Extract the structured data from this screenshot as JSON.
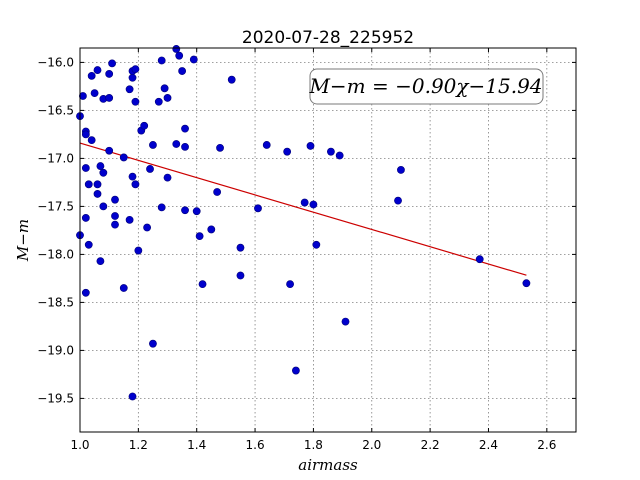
{
  "chart_data": {
    "type": "scatter",
    "title": "2020-07-28_225952",
    "xlabel": "airmass",
    "ylabel": "M−m",
    "xlim": [
      1.0,
      2.7
    ],
    "ylim": [
      -15.85,
      -19.85
    ],
    "y_inverted": true,
    "grid": true,
    "xticks": [
      "1.0",
      "1.2",
      "1.4",
      "1.6",
      "1.8",
      "2.0",
      "2.2",
      "2.4",
      "2.6"
    ],
    "yticks": [
      "−16.0",
      "−16.5",
      "−17.0",
      "−17.5",
      "−18.0",
      "−18.5",
      "−19.0",
      "−19.5"
    ],
    "annotation": "M−m = −0.90χ−15.94",
    "colors": {
      "points": "#0000cc",
      "fit_line": "#cc0000",
      "annotation_border": "#7a7a7a"
    },
    "fit": {
      "slope": -0.9,
      "intercept": -15.94,
      "x_range": [
        1.0,
        2.53
      ]
    },
    "points": [
      {
        "x": 1.0,
        "y": -16.56
      },
      {
        "x": 1.01,
        "y": -16.35
      },
      {
        "x": 1.02,
        "y": -16.72
      },
      {
        "x": 1.02,
        "y": -16.75
      },
      {
        "x": 1.0,
        "y": -17.8
      },
      {
        "x": 1.02,
        "y": -17.1
      },
      {
        "x": 1.02,
        "y": -17.62
      },
      {
        "x": 1.03,
        "y": -17.9
      },
      {
        "x": 1.03,
        "y": -17.27
      },
      {
        "x": 1.02,
        "y": -18.4
      },
      {
        "x": 1.04,
        "y": -16.14
      },
      {
        "x": 1.05,
        "y": -16.32
      },
      {
        "x": 1.04,
        "y": -16.81
      },
      {
        "x": 1.06,
        "y": -16.08
      },
      {
        "x": 1.06,
        "y": -17.27
      },
      {
        "x": 1.06,
        "y": -17.37
      },
      {
        "x": 1.07,
        "y": -17.08
      },
      {
        "x": 1.07,
        "y": -18.07
      },
      {
        "x": 1.08,
        "y": -16.38
      },
      {
        "x": 1.08,
        "y": -17.15
      },
      {
        "x": 1.08,
        "y": -17.5
      },
      {
        "x": 1.1,
        "y": -16.37
      },
      {
        "x": 1.1,
        "y": -16.12
      },
      {
        "x": 1.1,
        "y": -16.92
      },
      {
        "x": 1.11,
        "y": -16.01
      },
      {
        "x": 1.12,
        "y": -17.69
      },
      {
        "x": 1.12,
        "y": -17.6
      },
      {
        "x": 1.12,
        "y": -17.43
      },
      {
        "x": 1.15,
        "y": -16.99
      },
      {
        "x": 1.15,
        "y": -18.35
      },
      {
        "x": 1.17,
        "y": -16.28
      },
      {
        "x": 1.17,
        "y": -17.64
      },
      {
        "x": 1.18,
        "y": -16.16
      },
      {
        "x": 1.18,
        "y": -16.09
      },
      {
        "x": 1.18,
        "y": -17.19
      },
      {
        "x": 1.18,
        "y": -19.48
      },
      {
        "x": 1.19,
        "y": -16.07
      },
      {
        "x": 1.19,
        "y": -16.41
      },
      {
        "x": 1.19,
        "y": -17.27
      },
      {
        "x": 1.2,
        "y": -17.96
      },
      {
        "x": 1.21,
        "y": -16.71
      },
      {
        "x": 1.22,
        "y": -16.66
      },
      {
        "x": 1.23,
        "y": -17.72
      },
      {
        "x": 1.24,
        "y": -17.11
      },
      {
        "x": 1.25,
        "y": -16.86
      },
      {
        "x": 1.25,
        "y": -18.93
      },
      {
        "x": 1.27,
        "y": -16.41
      },
      {
        "x": 1.28,
        "y": -15.98
      },
      {
        "x": 1.28,
        "y": -17.51
      },
      {
        "x": 1.29,
        "y": -16.27
      },
      {
        "x": 1.3,
        "y": -16.37
      },
      {
        "x": 1.3,
        "y": -17.2
      },
      {
        "x": 1.33,
        "y": -16.85
      },
      {
        "x": 1.33,
        "y": -15.86
      },
      {
        "x": 1.34,
        "y": -15.93
      },
      {
        "x": 1.35,
        "y": -16.09
      },
      {
        "x": 1.36,
        "y": -16.69
      },
      {
        "x": 1.36,
        "y": -16.88
      },
      {
        "x": 1.36,
        "y": -17.54
      },
      {
        "x": 1.39,
        "y": -15.97
      },
      {
        "x": 1.4,
        "y": -17.55
      },
      {
        "x": 1.41,
        "y": -17.81
      },
      {
        "x": 1.42,
        "y": -18.31
      },
      {
        "x": 1.45,
        "y": -17.74
      },
      {
        "x": 1.47,
        "y": -17.35
      },
      {
        "x": 1.48,
        "y": -16.89
      },
      {
        "x": 1.52,
        "y": -16.18
      },
      {
        "x": 1.55,
        "y": -17.93
      },
      {
        "x": 1.55,
        "y": -18.22
      },
      {
        "x": 1.61,
        "y": -17.52
      },
      {
        "x": 1.64,
        "y": -16.86
      },
      {
        "x": 1.71,
        "y": -16.93
      },
      {
        "x": 1.72,
        "y": -18.31
      },
      {
        "x": 1.74,
        "y": -19.21
      },
      {
        "x": 1.77,
        "y": -17.46
      },
      {
        "x": 1.79,
        "y": -16.87
      },
      {
        "x": 1.8,
        "y": -17.48
      },
      {
        "x": 1.81,
        "y": -17.9
      },
      {
        "x": 1.86,
        "y": -16.93
      },
      {
        "x": 1.89,
        "y": -16.97
      },
      {
        "x": 1.91,
        "y": -18.7
      },
      {
        "x": 2.09,
        "y": -17.44
      },
      {
        "x": 2.1,
        "y": -17.12
      },
      {
        "x": 2.37,
        "y": -18.05
      },
      {
        "x": 2.53,
        "y": -18.3
      }
    ]
  }
}
